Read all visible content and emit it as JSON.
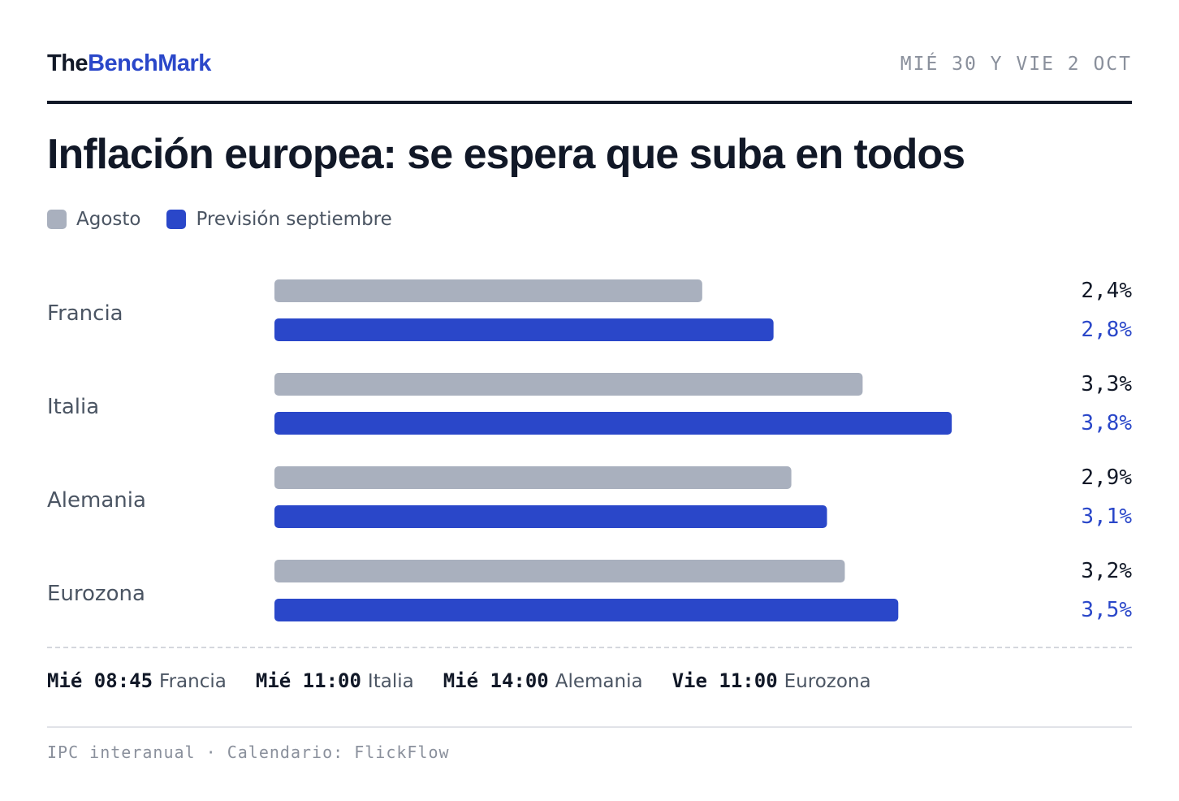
{
  "header": {
    "brand_prefix": "The",
    "brand_accent": "BenchMark",
    "dates": "MIÉ 30 Y VIE 2 OCT"
  },
  "colors": {
    "agosto": "#a9b0be",
    "prevision": "#2a47c9",
    "label_text": "#4b5563",
    "dark": "#111827"
  },
  "chart_data": {
    "type": "bar",
    "orientation": "horizontal",
    "title": "Inflación europea: se espera que suba en todos",
    "categories": [
      "Francia",
      "Italia",
      "Alemania",
      "Eurozona"
    ],
    "series": [
      {
        "name": "Agosto",
        "values": [
          2.4,
          3.3,
          2.9,
          3.2
        ],
        "labels": [
          "2,4%",
          "3,3%",
          "2,9%",
          "3,2%"
        ]
      },
      {
        "name": "Previsión septiembre",
        "values": [
          2.8,
          3.8,
          3.1,
          3.5
        ],
        "labels": [
          "2,8%",
          "3,8%",
          "3,1%",
          "3,5%"
        ]
      }
    ],
    "xlim": [
      0,
      4.1
    ],
    "grid": false,
    "legend_position": "top-left"
  },
  "schedule": [
    {
      "time": "Mié 08:45",
      "place": "Francia"
    },
    {
      "time": "Mié 11:00",
      "place": "Italia"
    },
    {
      "time": "Mié 14:00",
      "place": "Alemania"
    },
    {
      "time": "Vie 11:00",
      "place": "Eurozona"
    }
  ],
  "footer": {
    "text": "IPC interanual · Calendario: FlickFlow"
  }
}
